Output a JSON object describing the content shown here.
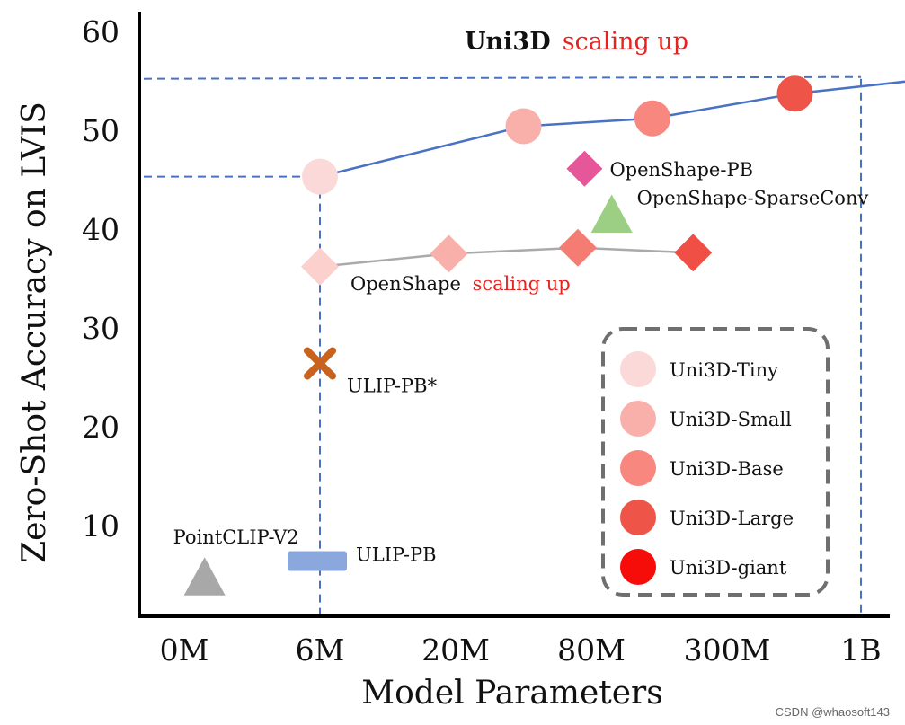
{
  "chart_data": {
    "type": "scatter",
    "title": {
      "part1": "Uni3D",
      "part2": "scaling up"
    },
    "xlabel": "Model Parameters",
    "ylabel": "Zero-Shot Accuracy on LVIS",
    "x_categories": [
      "0M",
      "6M",
      "20M",
      "80M",
      "300M",
      "1B"
    ],
    "y_ticks": [
      "10",
      "20",
      "30",
      "40",
      "50",
      "60"
    ],
    "ylim": [
      3,
      61
    ],
    "uni3d_series": {
      "label_colors": [
        "#fbd9d8",
        "#f9b0aa",
        "#f7877f",
        "#ee5448",
        "#f60c08"
      ],
      "points": [
        {
          "x": 1,
          "y": 45.4,
          "color": "#fbd9d8"
        },
        {
          "x": 2.5,
          "y": 50.5,
          "color": "#f9b0aa"
        },
        {
          "x": 3.45,
          "y": 51.3,
          "color": "#f7877f"
        },
        {
          "x": 4.5,
          "y": 53.8,
          "color": "#ee5448"
        },
        {
          "x": 5.5,
          "y": 55.3,
          "color": "#f60c08"
        }
      ],
      "line_color": "#4a72c4"
    },
    "openshape_series": {
      "label_part1": "OpenShape",
      "label_part2": "scaling up",
      "points": [
        {
          "x": 1,
          "y": 36.3,
          "color": "#fbd0cd"
        },
        {
          "x": 1.95,
          "y": 37.6,
          "color": "#f9b0aa"
        },
        {
          "x": 2.9,
          "y": 38.2,
          "color": "#f47c73"
        },
        {
          "x": 3.75,
          "y": 37.7,
          "color": "#ef4f45"
        }
      ],
      "line_color": "#aaaaaa"
    },
    "annotations": [
      {
        "label": "OpenShape-PB",
        "x": 2.95,
        "y": 46.2,
        "marker": "diamond",
        "color": "#e6579a"
      },
      {
        "label": "OpenShape-SparseConv",
        "x": 3.15,
        "y": 41.5,
        "marker": "triangle",
        "color": "#9ccf84"
      },
      {
        "label": "ULIP-PB*",
        "x": 1,
        "y": 26.5,
        "marker": "x",
        "color": "#c8621c"
      },
      {
        "label": "PointCLIP-V2",
        "x": 0.15,
        "y": 4.8,
        "marker": "triangle",
        "color": "#a8a8a8"
      },
      {
        "label": "ULIP-PB",
        "x": 1,
        "y": 6.5,
        "marker": "bar",
        "color": "#8aa8dd"
      }
    ],
    "legend": {
      "placement": "bottom-right",
      "entries": [
        {
          "label": "Uni3D-Tiny",
          "color": "#fbd9d8"
        },
        {
          "label": "Uni3D-Small",
          "color": "#f9b0aa"
        },
        {
          "label": "Uni3D-Base",
          "color": "#f7877f"
        },
        {
          "label": "Uni3D-Large",
          "color": "#ee5448"
        },
        {
          "label": "Uni3D-giant",
          "color": "#f60c08"
        }
      ]
    },
    "grid": false
  },
  "watermark": "CSDN @whaosoft143"
}
